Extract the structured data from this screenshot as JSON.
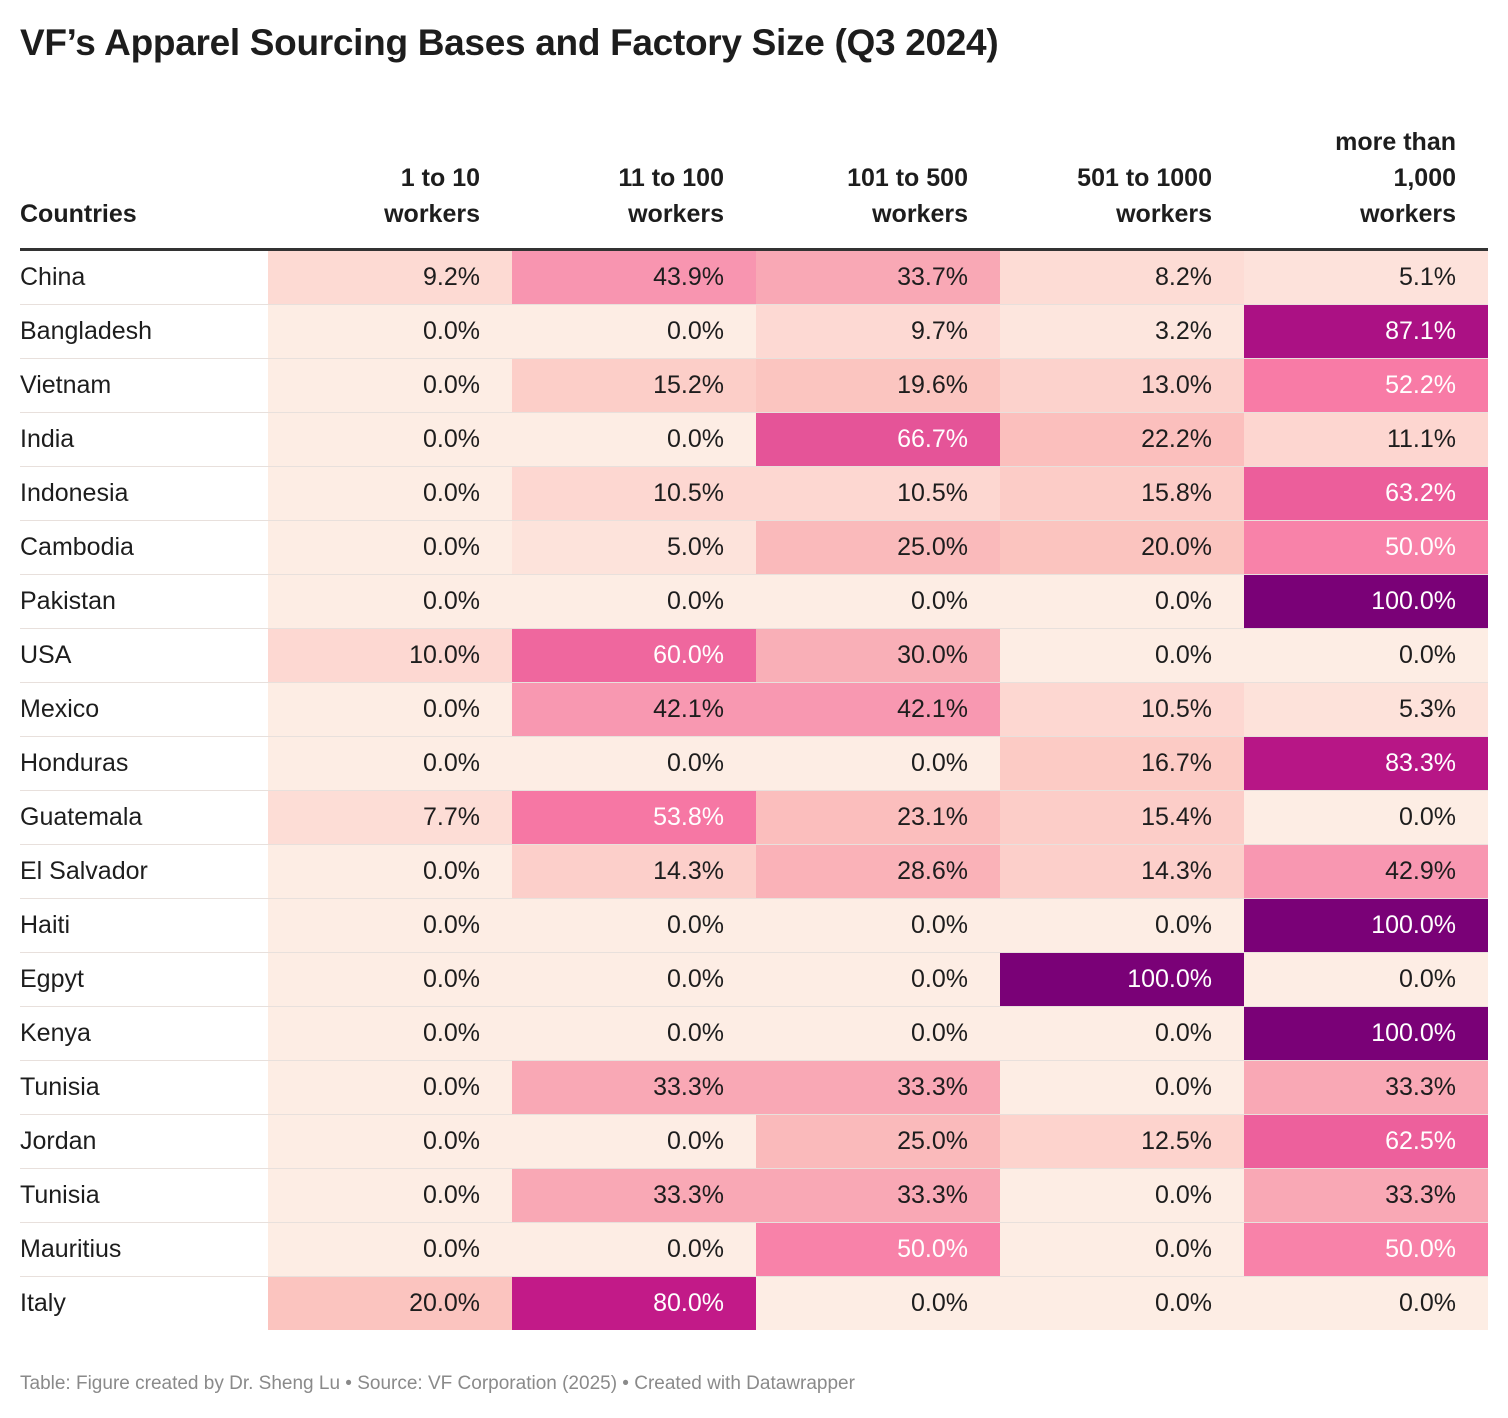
{
  "title": "VF’s Apparel Sourcing Bases and Factory Size (Q3 2024)",
  "footer": "Table: Figure created by Dr. Sheng Lu • Source: VF Corporation (2025) • Created with Datawrapper",
  "chart_data": {
    "type": "table",
    "title": "VF’s Apparel Sourcing Bases and Factory Size (Q3 2024)",
    "columns": [
      "Countries",
      "1 to 10 workers",
      "11 to 100 workers",
      "101 to 500 workers",
      "501 to 1000 workers",
      "more than 1,000 workers"
    ],
    "rows": [
      {
        "country": "China",
        "values": [
          "9.2%",
          "43.9%",
          "33.7%",
          "8.2%",
          "5.1%"
        ]
      },
      {
        "country": "Bangladesh",
        "values": [
          "0.0%",
          "0.0%",
          "9.7%",
          "3.2%",
          "87.1%"
        ]
      },
      {
        "country": "Vietnam",
        "values": [
          "0.0%",
          "15.2%",
          "19.6%",
          "13.0%",
          "52.2%"
        ]
      },
      {
        "country": "India",
        "values": [
          "0.0%",
          "0.0%",
          "66.7%",
          "22.2%",
          "11.1%"
        ]
      },
      {
        "country": "Indonesia",
        "values": [
          "0.0%",
          "10.5%",
          "10.5%",
          "15.8%",
          "63.2%"
        ]
      },
      {
        "country": "Cambodia",
        "values": [
          "0.0%",
          "5.0%",
          "25.0%",
          "20.0%",
          "50.0%"
        ]
      },
      {
        "country": "Pakistan",
        "values": [
          "0.0%",
          "0.0%",
          "0.0%",
          "0.0%",
          "100.0%"
        ]
      },
      {
        "country": "USA",
        "values": [
          "10.0%",
          "60.0%",
          "30.0%",
          "0.0%",
          "0.0%"
        ]
      },
      {
        "country": "Mexico",
        "values": [
          "0.0%",
          "42.1%",
          "42.1%",
          "10.5%",
          "5.3%"
        ]
      },
      {
        "country": "Honduras",
        "values": [
          "0.0%",
          "0.0%",
          "0.0%",
          "16.7%",
          "83.3%"
        ]
      },
      {
        "country": "Guatemala",
        "values": [
          "7.7%",
          "53.8%",
          "23.1%",
          "15.4%",
          "0.0%"
        ]
      },
      {
        "country": "El Salvador",
        "values": [
          "0.0%",
          "14.3%",
          "28.6%",
          "14.3%",
          "42.9%"
        ]
      },
      {
        "country": "Haiti",
        "values": [
          "0.0%",
          "0.0%",
          "0.0%",
          "0.0%",
          "100.0%"
        ]
      },
      {
        "country": "Egpyt",
        "values": [
          "0.0%",
          "0.0%",
          "0.0%",
          "100.0%",
          "0.0%"
        ]
      },
      {
        "country": "Kenya",
        "values": [
          "0.0%",
          "0.0%",
          "0.0%",
          "0.0%",
          "100.0%"
        ]
      },
      {
        "country": "Tunisia",
        "values": [
          "0.0%",
          "33.3%",
          "33.3%",
          "0.0%",
          "33.3%"
        ]
      },
      {
        "country": "Jordan",
        "values": [
          "0.0%",
          "0.0%",
          "25.0%",
          "12.5%",
          "62.5%"
        ]
      },
      {
        "country": "Tunisia",
        "values": [
          "0.0%",
          "33.3%",
          "33.3%",
          "0.0%",
          "33.3%"
        ]
      },
      {
        "country": "Mauritius",
        "values": [
          "0.0%",
          "0.0%",
          "50.0%",
          "0.0%",
          "50.0%"
        ]
      },
      {
        "country": "Italy",
        "values": [
          "20.0%",
          "80.0%",
          "0.0%",
          "0.0%",
          "0.0%"
        ]
      }
    ],
    "color_scale": [
      {
        "value": 0,
        "color": "#fdede4"
      },
      {
        "value": 10,
        "color": "#fdd8d2"
      },
      {
        "value": 20,
        "color": "#fbc4bf"
      },
      {
        "value": 33,
        "color": "#f9a9b5"
      },
      {
        "value": 44,
        "color": "#f895b0"
      },
      {
        "value": 52,
        "color": "#f87ca6"
      },
      {
        "value": 63,
        "color": "#ec5f9b"
      },
      {
        "value": 67,
        "color": "#e45398"
      },
      {
        "value": 80,
        "color": "#c21a88"
      },
      {
        "value": 87,
        "color": "#ab1184"
      },
      {
        "value": 100,
        "color": "#7a0177"
      }
    ]
  }
}
